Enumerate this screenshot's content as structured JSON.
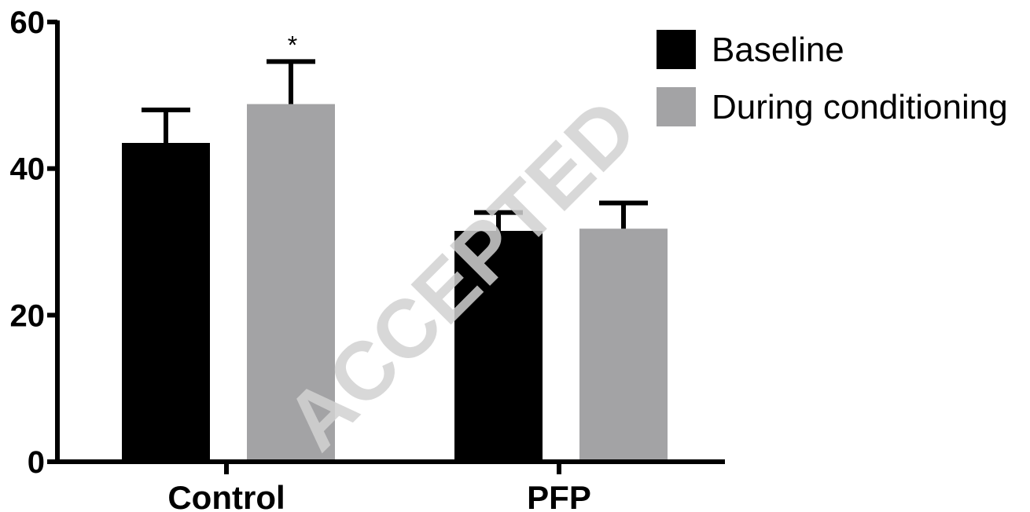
{
  "chart_data": {
    "type": "bar",
    "title": "",
    "xlabel": "",
    "ylabel": "",
    "categories": [
      "Control",
      "PFP"
    ],
    "series": [
      {
        "name": "Baseline",
        "color": "#000000",
        "values": [
          43.5,
          31.5
        ],
        "error": [
          4.5,
          2.5
        ]
      },
      {
        "name": "During conditioning",
        "color": "#a3a3a5",
        "values": [
          48.8,
          31.8
        ],
        "error": [
          5.8,
          3.5
        ]
      }
    ],
    "ylim": [
      0,
      60
    ],
    "yticks": [
      "0",
      "20",
      "40",
      "60"
    ],
    "ytick_values": [
      0,
      20,
      40,
      60
    ],
    "grid": false,
    "legend_position": "top-right",
    "annotations": [
      {
        "text": "*",
        "category": "Control",
        "series": "During conditioning"
      }
    ]
  },
  "watermark": {
    "text": "ACCEPTED"
  }
}
